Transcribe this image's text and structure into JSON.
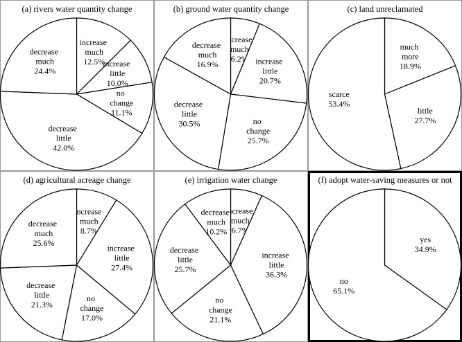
{
  "chart_data": [
    {
      "type": "pie",
      "title": "(a)   rivers water quantity change",
      "color": "#ffffff",
      "categories": [
        "increase much",
        "increase little",
        "no change",
        "decrease little",
        "decrease much"
      ],
      "values": [
        12.5,
        10.0,
        11.1,
        42.0,
        24.4
      ],
      "value_labels": [
        "12.5%",
        "10.0%",
        "11.1%",
        "42.0%",
        "24.4%"
      ]
    },
    {
      "type": "pie",
      "title": "(b) ground water quantity change",
      "color": "#ffffff",
      "categories": [
        "increase much",
        "increase little",
        "no change",
        "decrease little",
        "decrease much"
      ],
      "values": [
        6.2,
        20.7,
        25.7,
        30.5,
        16.9
      ],
      "value_labels": [
        "6.2%",
        "20.7%",
        "25.7%",
        "30.5%",
        "16.9%"
      ]
    },
    {
      "type": "pie",
      "title": "(c) land unreclamated",
      "color": "#ffffff",
      "categories": [
        "much more",
        "little",
        "scarce"
      ],
      "values": [
        18.9,
        27.7,
        53.4
      ],
      "value_labels": [
        "18.9%",
        "27.7%",
        "53.4%"
      ]
    },
    {
      "type": "pie",
      "title": "(d) agricultural acreage change",
      "color": "#ffffff",
      "categories": [
        "increase much",
        "increase little",
        "no change",
        "decrease little",
        "decrease much"
      ],
      "values": [
        8.7,
        27.4,
        17.0,
        21.3,
        25.6
      ],
      "value_labels": [
        "8.7%",
        "27.4%",
        "17.0%",
        "21.3%",
        "25.6%"
      ]
    },
    {
      "type": "pie",
      "title": "(e) irrigation water change",
      "color": "#ffffff",
      "categories": [
        "increase much",
        "increase little",
        "no change",
        "decrease little",
        "decrease much"
      ],
      "values": [
        6.7,
        36.3,
        21.1,
        25.7,
        10.2
      ],
      "value_labels": [
        "6.7%",
        "36.3%",
        "21.1%",
        "25.7%",
        "10.2%"
      ]
    },
    {
      "type": "pie",
      "title": "(f) adopt water-saving measures or not",
      "color": "#ffffff",
      "categories": [
        "yes",
        "no"
      ],
      "values": [
        34.9,
        65.1
      ],
      "value_labels": [
        "34.9%",
        "65.1%"
      ]
    }
  ]
}
